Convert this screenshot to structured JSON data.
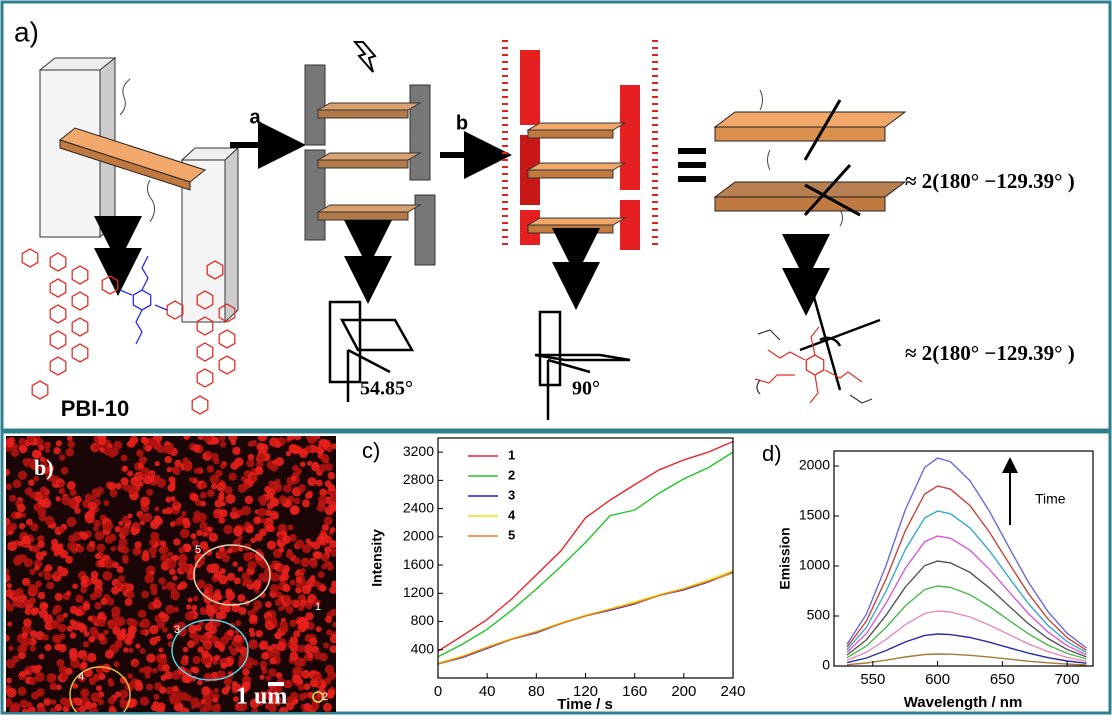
{
  "panel_a": {
    "label": "a)",
    "step_a": "a",
    "step_b": "b",
    "compound": "PBI-10",
    "angle_1": "54.85°",
    "angle_2": "90°",
    "angle_3": "≈ 2(180°  −129.39° )",
    "angle_4": "≈ 2(180°  −129.39° )"
  },
  "panel_b": {
    "label": "b)",
    "scale_bar": "1 um",
    "regions": [
      "1",
      "2",
      "3",
      "4",
      "5"
    ]
  },
  "chart_data": [
    {
      "type": "line",
      "panel_label": "c)",
      "x_label": "Time / s",
      "y_label": "Intensity",
      "x": [
        0,
        20,
        40,
        60,
        80,
        100,
        120,
        140,
        160,
        180,
        200,
        220,
        240
      ],
      "series": [
        {
          "name": "1",
          "color": "#e8262b",
          "values": [
            380,
            600,
            830,
            1120,
            1460,
            1800,
            2270,
            2520,
            2740,
            2950,
            3090,
            3200,
            3350
          ]
        },
        {
          "name": "2",
          "color": "#22c428",
          "values": [
            300,
            480,
            690,
            960,
            1260,
            1580,
            1920,
            2300,
            2380,
            2620,
            2820,
            2980,
            3200
          ]
        },
        {
          "name": "3",
          "color": "#1f1fc8",
          "values": [
            200,
            290,
            420,
            550,
            640,
            770,
            880,
            960,
            1050,
            1170,
            1250,
            1360,
            1500
          ]
        },
        {
          "name": "4",
          "color": "#f2e21a",
          "values": [
            210,
            310,
            440,
            560,
            660,
            780,
            890,
            980,
            1080,
            1180,
            1270,
            1390,
            1520
          ]
        },
        {
          "name": "5",
          "color": "#e87a22",
          "values": [
            200,
            300,
            430,
            550,
            650,
            770,
            880,
            970,
            1060,
            1170,
            1260,
            1370,
            1490
          ]
        }
      ],
      "xlim": [
        0,
        240
      ],
      "ylim": [
        0,
        3400
      ],
      "xticks": [
        0,
        40,
        80,
        120,
        160,
        200,
        240
      ],
      "yticks": [
        400,
        800,
        1200,
        1600,
        2000,
        2400,
        2800,
        3200
      ],
      "legend": "upper left"
    },
    {
      "type": "line",
      "panel_label": "d)",
      "x_label": "Wavelength / nm",
      "y_label": "Emission",
      "annotation": "Time",
      "x": [
        530,
        545,
        560,
        575,
        590,
        600,
        610,
        625,
        640,
        655,
        670,
        685,
        700,
        715
      ],
      "series": [
        {
          "color": "#6a6ad8",
          "values": [
            218,
            518,
            998,
            1560,
            1986,
            2080,
            2043,
            1853,
            1548,
            1190,
            840,
            547,
            327,
            181
          ]
        },
        {
          "color": "#c8443a",
          "values": [
            189,
            448,
            864,
            1350,
            1719,
            1800,
            1768,
            1604,
            1339,
            1030,
            727,
            473,
            283,
            157
          ]
        },
        {
          "color": "#3aa8c8",
          "values": [
            163,
            386,
            744,
            1163,
            1480,
            1550,
            1522,
            1381,
            1153,
            887,
            626,
            408,
            243,
            135
          ]
        },
        {
          "color": "#d85ad8",
          "values": [
            137,
            324,
            624,
            975,
            1242,
            1300,
            1277,
            1158,
            967,
            744,
            525,
            342,
            204,
            113
          ]
        },
        {
          "color": "#555555",
          "values": [
            110,
            261,
            504,
            788,
            1003,
            1050,
            1031,
            936,
            781,
            601,
            424,
            276,
            165,
            91
          ]
        },
        {
          "color": "#48b848",
          "values": [
            84,
            199,
            384,
            600,
            764,
            800,
            786,
            713,
            595,
            458,
            323,
            210,
            126,
            70
          ]
        },
        {
          "color": "#e88ab8",
          "values": [
            58,
            137,
            264,
            413,
            525,
            550,
            540,
            490,
            409,
            315,
            222,
            145,
            86,
            48
          ]
        },
        {
          "color": "#2a2aa8",
          "values": [
            34,
            80,
            154,
            240,
            306,
            320,
            314,
            285,
            238,
            183,
            129,
            84,
            50,
            28
          ]
        },
        {
          "color": "#a87a3a",
          "values": [
            13,
            30,
            58,
            90,
            115,
            120,
            118,
            107,
            89,
            69,
            48,
            32,
            19,
            10
          ]
        }
      ],
      "xlim": [
        520,
        720
      ],
      "ylim": [
        0,
        2150
      ],
      "xticks": [
        550,
        600,
        650,
        700
      ],
      "yticks": [
        0,
        500,
        1000,
        1500,
        2000
      ]
    }
  ]
}
